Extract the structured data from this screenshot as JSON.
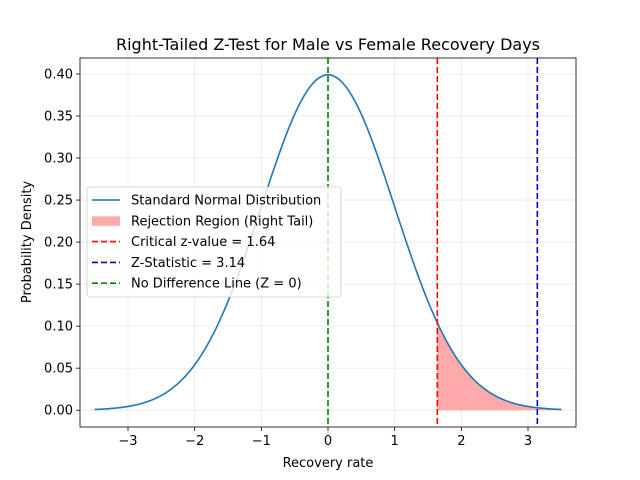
{
  "chart_data": {
    "type": "line",
    "title": "Right-Tailed Z-Test for Male vs Female Recovery Days",
    "xlabel": "Recovery rate",
    "ylabel": "Probability Density",
    "xlim": [
      -3.72,
      3.72
    ],
    "ylim": [
      -0.02,
      0.419
    ],
    "xticks": [
      -3,
      -2,
      -1,
      0,
      1,
      2,
      3
    ],
    "xtick_labels": [
      "−3",
      "−2",
      "−1",
      "0",
      "1",
      "2",
      "3"
    ],
    "yticks": [
      0.0,
      0.05,
      0.1,
      0.15,
      0.2,
      0.25,
      0.3,
      0.35,
      0.4
    ],
    "ytick_labels": [
      "0.00",
      "0.05",
      "0.10",
      "0.15",
      "0.20",
      "0.25",
      "0.30",
      "0.35",
      "0.40"
    ],
    "grid": true,
    "legend_position": "center-left",
    "curve": {
      "name": "Standard Normal Distribution",
      "color": "#1f77b4",
      "x_range": [
        -3.5,
        3.5
      ]
    },
    "rejection_region": {
      "name": "Rejection Region (Right Tail)",
      "color": "#ffaaaa",
      "x_from": 1.64,
      "x_to": 3.5
    },
    "vlines": [
      {
        "name": "Critical z-value = 1.64",
        "x": 1.64,
        "color": "#ff0000"
      },
      {
        "name": "Z-Statistic = 3.14",
        "x": 3.14,
        "color": "#0000cc"
      },
      {
        "name": "No Difference Line (Z = 0)",
        "x": 0,
        "color": "#008000"
      }
    ]
  }
}
